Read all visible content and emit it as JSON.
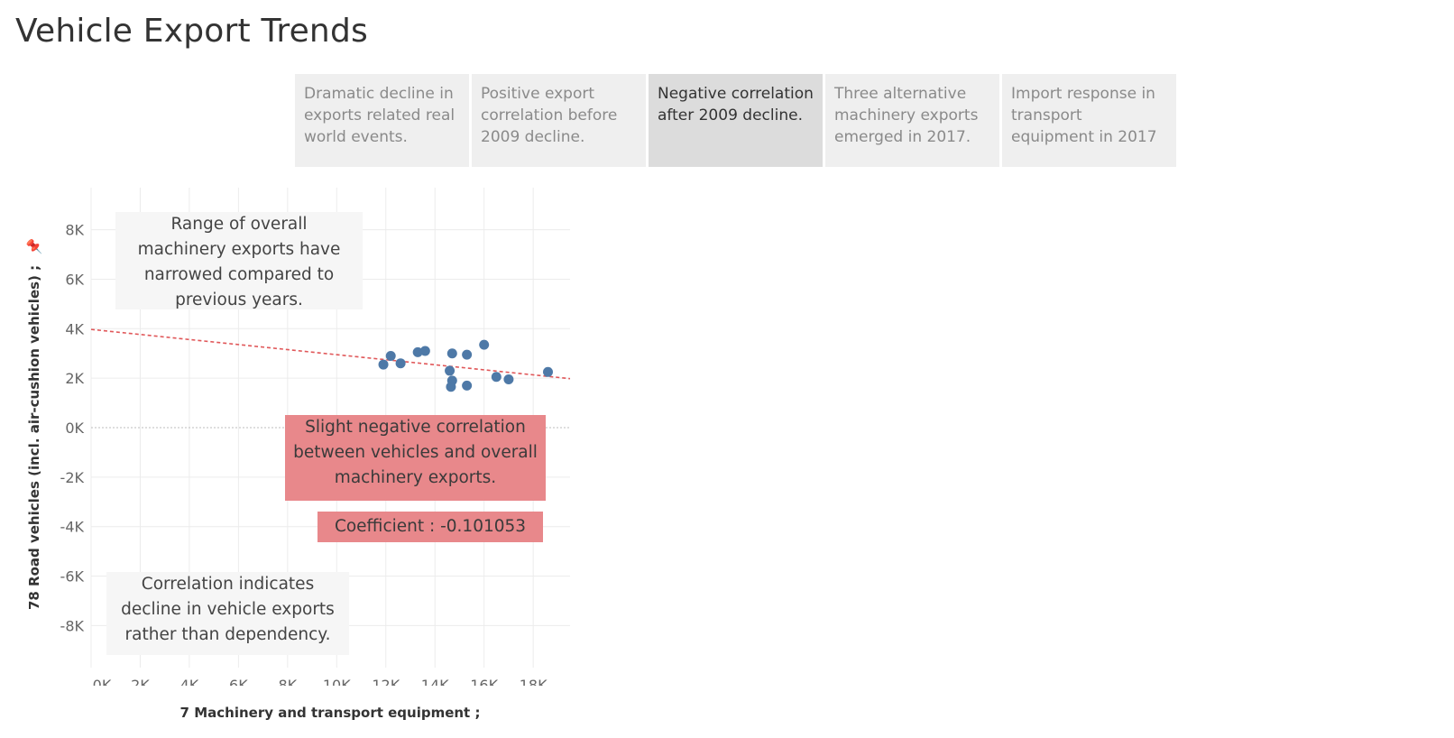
{
  "page": {
    "title": "Vehicle Export Trends"
  },
  "story_points": [
    {
      "label": "Dramatic decline in exports related real world events.",
      "active": false
    },
    {
      "label": "Positive export correlation before 2009 decline.",
      "active": false
    },
    {
      "label": "Negative correlation after 2009 decline.",
      "active": true
    },
    {
      "label": "Three alternative machinery exports emerged in 2017.",
      "active": false
    },
    {
      "label": "Import response in transport equipment in 2017",
      "active": false
    }
  ],
  "annotations": {
    "range": "Range of overall machinery exports have narrowed compared to previous years.",
    "negative": "Slight negative correlation between vehicles and overall machinery exports.",
    "coefficient": "Coefficient : -0.101053",
    "dependency": "Correlation indicates decline in vehicle exports rather than dependency."
  },
  "colors": {
    "point": "#4e79a7",
    "trend": "#e05759",
    "grid": "#ececec",
    "zero_line": "#bdbdbd",
    "annotation_red": "#e8888b",
    "annotation_gray": "#f6f6f6"
  },
  "chart_data": {
    "type": "scatter",
    "xlabel": "7 Machinery and transport equipment ;",
    "ylabel": "78 Road vehicles (incl. air-cushion vehicles) ;",
    "ylabel_icon": "pin-icon",
    "xlim": [
      0,
      19500
    ],
    "ylim": [
      -9700,
      9700
    ],
    "x_ticks": [
      0,
      2000,
      4000,
      6000,
      8000,
      10000,
      12000,
      14000,
      16000,
      18000
    ],
    "x_tick_labels": [
      "0K",
      "2K",
      "4K",
      "6K",
      "8K",
      "10K",
      "12K",
      "14K",
      "16K",
      "18K"
    ],
    "y_ticks": [
      8000,
      6000,
      4000,
      2000,
      0,
      -2000,
      -4000,
      -6000,
      -8000
    ],
    "y_tick_labels": [
      "8K",
      "6K",
      "4K",
      "2K",
      "0K",
      "-2K",
      "-4K",
      "-6K",
      "-8K"
    ],
    "grid": true,
    "points": [
      {
        "x": 11900,
        "y": 2550
      },
      {
        "x": 12200,
        "y": 2900
      },
      {
        "x": 12600,
        "y": 2600
      },
      {
        "x": 13300,
        "y": 3050
      },
      {
        "x": 13600,
        "y": 3100
      },
      {
        "x": 14600,
        "y": 2300
      },
      {
        "x": 14700,
        "y": 3000
      },
      {
        "x": 14700,
        "y": 1900
      },
      {
        "x": 14650,
        "y": 1650
      },
      {
        "x": 15300,
        "y": 2950
      },
      {
        "x": 15300,
        "y": 1700
      },
      {
        "x": 16000,
        "y": 3350
      },
      {
        "x": 16500,
        "y": 2050
      },
      {
        "x": 17000,
        "y": 1950
      },
      {
        "x": 18600,
        "y": 2250
      }
    ],
    "trend_line": {
      "x": [
        0,
        19500
      ],
      "y": [
        3970,
        1980
      ]
    },
    "coefficient": -0.101053
  }
}
